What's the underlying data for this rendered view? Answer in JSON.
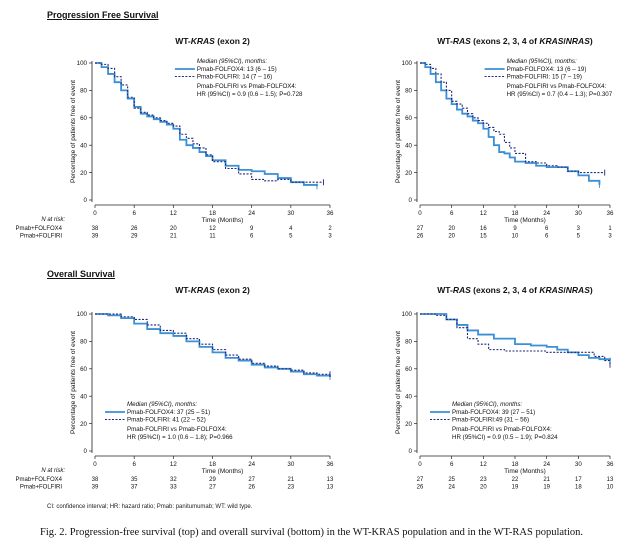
{
  "sections": {
    "pfs_title": "Progression Free Survival",
    "os_title": "Overall Survival"
  },
  "footnote": "CI: confidence interval; HR: hazard ratio; Pmab: panitumumab; WT: wild type.",
  "caption": "Fig. 2. Progression-free survival (top) and overall survival (bottom) in the WT-KRAS population and in the WT-RAS population.",
  "colors": {
    "folfox": "#3b8fd6",
    "folfiri": "#1f2a7a"
  },
  "chart_data": [
    {
      "type": "line",
      "title": "WT-KRAS (exon 2)",
      "xlabel": "Time (Months)",
      "ylabel": "Percentage of patients free of event",
      "xlim": [
        0,
        36
      ],
      "ylim": [
        0,
        100
      ],
      "xticks": [
        0,
        6,
        12,
        18,
        24,
        30,
        36
      ],
      "yticks": [
        0,
        20,
        40,
        60,
        80,
        100
      ],
      "legend_position": "top-right",
      "legend_header": "Median (95%CI), months:",
      "hr_line1": "Pmab-FOLFIRI vs Pmab-FOLFOX4:",
      "hr_line2": "HR (95%CI) = 0.9 (0.6 – 1.5); P=0.728",
      "series": [
        {
          "name": "Pmab-FOLFOX4: 13 (6 – 15)",
          "style": "solid",
          "x": [
            0,
            1,
            2,
            3,
            4,
            5,
            6,
            7,
            8,
            9,
            10,
            11,
            12,
            13,
            14,
            15,
            16,
            17,
            18,
            20,
            22,
            24,
            26,
            28,
            30,
            32,
            34
          ],
          "y": [
            100,
            97,
            92,
            86,
            80,
            74,
            68,
            63,
            61,
            59,
            57,
            55,
            52,
            44,
            40,
            38,
            35,
            32,
            29,
            25,
            22,
            21,
            19,
            16,
            13,
            11,
            10
          ]
        },
        {
          "name": "Pmab-FOLFIRI: 14 (7 – 16)",
          "style": "dashed",
          "x": [
            0,
            1,
            2,
            3,
            4,
            5,
            6,
            7,
            8,
            9,
            10,
            11,
            12,
            13,
            14,
            15,
            16,
            17,
            18,
            20,
            22,
            24,
            26,
            28,
            30,
            32,
            35
          ],
          "y": [
            100,
            99,
            96,
            90,
            84,
            75,
            67,
            64,
            62,
            60,
            58,
            56,
            54,
            48,
            45,
            41,
            38,
            33,
            28,
            23,
            19,
            15,
            14,
            15,
            13,
            13,
            13
          ]
        }
      ],
      "risk_title": "N at risk:",
      "risk_rows": [
        {
          "label": "Pmab+FOLFOX4",
          "values": [
            "38",
            "26",
            "20",
            "12",
            "9",
            "4",
            "2"
          ]
        },
        {
          "label": "Pmab+FOLFIRI",
          "values": [
            "39",
            "29",
            "21",
            "11",
            "6",
            "5",
            "3"
          ]
        }
      ]
    },
    {
      "type": "line",
      "title": "WT-RAS (exons 2, 3, 4 of KRAS/NRAS)",
      "xlabel": "Time (Months)",
      "ylabel": "Percentage of patients free of event",
      "xlim": [
        0,
        36
      ],
      "ylim": [
        0,
        100
      ],
      "xticks": [
        0,
        6,
        12,
        18,
        24,
        30,
        36
      ],
      "yticks": [
        0,
        20,
        40,
        60,
        80,
        100
      ],
      "legend_position": "top-right",
      "legend_header": "Median (95%CI), months:",
      "hr_line1": "Pmab-FOLFIRI vs Pmab-FOLFOX4:",
      "hr_line2": "HR (95%CI) = 0.7 (0.4 – 1.3); P=0.307",
      "series": [
        {
          "name": "Pmab-FOLFOX4: 13 (6 – 19)",
          "style": "solid",
          "x": [
            0,
            1,
            2,
            3,
            4,
            5,
            6,
            7,
            8,
            9,
            10,
            11,
            12,
            13,
            14,
            15,
            16,
            17,
            18,
            20,
            22,
            24,
            26,
            28,
            30,
            32,
            34
          ],
          "y": [
            100,
            97,
            92,
            86,
            80,
            74,
            70,
            66,
            63,
            61,
            58,
            56,
            52,
            46,
            40,
            35,
            34,
            31,
            28,
            27,
            25,
            24,
            24,
            21,
            18,
            14,
            11
          ]
        },
        {
          "name": "Pmab-FOLFIRI: 15 (7 – 19)",
          "style": "dashed",
          "x": [
            0,
            1,
            2,
            3,
            4,
            5,
            6,
            7,
            8,
            9,
            10,
            11,
            12,
            13,
            14,
            15,
            16,
            17,
            18,
            20,
            22,
            24,
            26,
            28,
            30,
            32,
            35
          ],
          "y": [
            100,
            99,
            96,
            92,
            86,
            80,
            72,
            70,
            67,
            63,
            60,
            58,
            56,
            53,
            50,
            48,
            42,
            38,
            34,
            28,
            27,
            25,
            24,
            21,
            20,
            20,
            20
          ]
        }
      ],
      "risk_title": "",
      "risk_rows": [
        {
          "label": "",
          "values": [
            "27",
            "20",
            "16",
            "9",
            "6",
            "3",
            "1"
          ]
        },
        {
          "label": "",
          "values": [
            "26",
            "20",
            "15",
            "10",
            "6",
            "5",
            "3"
          ]
        }
      ]
    },
    {
      "type": "line",
      "title": "WT-KRAS (exon 2)",
      "xlabel": "Time (Months)",
      "ylabel": "Percentage of patients free of event",
      "xlim": [
        0,
        36
      ],
      "ylim": [
        0,
        100
      ],
      "xticks": [
        0,
        6,
        12,
        18,
        24,
        30,
        36
      ],
      "yticks": [
        0,
        20,
        40,
        60,
        80,
        100
      ],
      "legend_position": "bottom-left",
      "legend_header": "Median (95%CI), months:",
      "hr_line1": "Pmab-FOLFIRI vs Pmab-FOLFOX4:",
      "hr_line2": "HR (95%CI) = 1.0 (0.6 – 1.8); P=0.966",
      "series": [
        {
          "name": "Pmab-FOLFOX4: 37 (25 – 51)",
          "style": "solid",
          "x": [
            0,
            2,
            4,
            6,
            8,
            10,
            12,
            14,
            16,
            18,
            20,
            22,
            24,
            26,
            28,
            30,
            32,
            34,
            36
          ],
          "y": [
            100,
            99,
            97,
            93,
            89,
            86,
            84,
            80,
            76,
            72,
            68,
            66,
            63,
            61,
            60,
            58,
            56,
            55,
            54
          ]
        },
        {
          "name": "Pmab-FOLFIRI: 41 (22 – 52)",
          "style": "dashed",
          "x": [
            0,
            2,
            4,
            6,
            8,
            10,
            12,
            14,
            16,
            18,
            20,
            22,
            24,
            26,
            28,
            30,
            32,
            34,
            36
          ],
          "y": [
            100,
            100,
            98,
            96,
            92,
            88,
            86,
            82,
            78,
            74,
            70,
            67,
            64,
            62,
            60,
            59,
            57,
            56,
            56
          ]
        }
      ],
      "risk_title": "N at risk:",
      "risk_rows": [
        {
          "label": "Pmab+FOLFOX4",
          "values": [
            "38",
            "35",
            "32",
            "29",
            "27",
            "21",
            "13"
          ]
        },
        {
          "label": "Pmab+FOLFIRI",
          "values": [
            "39",
            "37",
            "33",
            "27",
            "26",
            "23",
            "13"
          ]
        }
      ]
    },
    {
      "type": "line",
      "title": "WT-RAS (exons 2, 3, 4 of KRAS/NRAS)",
      "xlabel": "Time (Months)",
      "ylabel": "Percentage of patients free of event",
      "xlim": [
        0,
        36
      ],
      "ylim": [
        0,
        100
      ],
      "xticks": [
        0,
        6,
        12,
        18,
        24,
        30,
        36
      ],
      "yticks": [
        0,
        20,
        40,
        60,
        80,
        100
      ],
      "legend_position": "bottom-left",
      "legend_header": "Median (95%CI), months:",
      "hr_line1": "Pmab-FOLFIRI vs Pmab-FOLFOX4:",
      "hr_line2": "HR (95%CI) = 0.9 (0.5 – 1.9); P=0.824",
      "series": [
        {
          "name": "Pmab-FOLFOX4: 39 (27 – 51)",
          "style": "solid",
          "x": [
            0,
            3,
            5,
            7,
            9,
            11,
            14,
            18,
            21,
            24,
            26,
            28,
            30,
            32,
            34,
            36
          ],
          "y": [
            100,
            100,
            96,
            92,
            88,
            85,
            82,
            78,
            77,
            76,
            74,
            72,
            70,
            68,
            67,
            66
          ]
        },
        {
          "name": "Pmab-FOLFIRI:49 (31 – 56)",
          "style": "dashed",
          "x": [
            0,
            3,
            5,
            7,
            9,
            11,
            13,
            16,
            20,
            24,
            27,
            30,
            33,
            35,
            36
          ],
          "y": [
            100,
            99,
            96,
            90,
            82,
            78,
            74,
            73,
            73,
            72,
            72,
            72,
            69,
            66,
            63
          ]
        }
      ],
      "risk_title": "",
      "risk_rows": [
        {
          "label": "",
          "values": [
            "27",
            "25",
            "23",
            "22",
            "21",
            "17",
            "13"
          ]
        },
        {
          "label": "",
          "values": [
            "26",
            "24",
            "20",
            "19",
            "19",
            "18",
            "10"
          ]
        }
      ]
    }
  ]
}
